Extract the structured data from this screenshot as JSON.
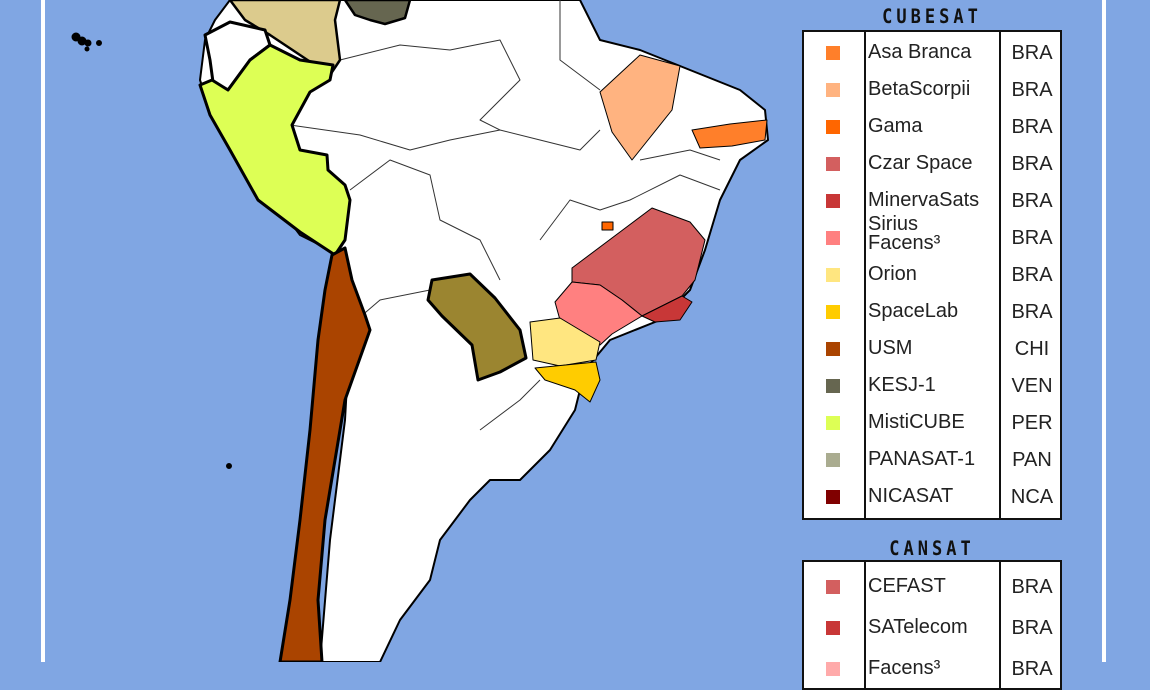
{
  "legend": {
    "cubesat": {
      "title": "CUBESAT",
      "items": [
        {
          "name": "Asa Branca",
          "country": "BRA",
          "color": "#ff7f2a"
        },
        {
          "name": "BetaScorpii",
          "country": "BRA",
          "color": "#ffb380"
        },
        {
          "name": "Gama",
          "country": "BRA",
          "color": "#ff6600"
        },
        {
          "name": "Czar Space",
          "country": "BRA",
          "color": "#d35f5f"
        },
        {
          "name": "MinervaSats",
          "country": "BRA",
          "color": "#c83737"
        },
        {
          "name": "Sirius Facens³",
          "country": "BRA",
          "color": "#ff8080"
        },
        {
          "name": "Orion",
          "country": "BRA",
          "color": "#ffe680"
        },
        {
          "name": "SpaceLab",
          "country": "BRA",
          "color": "#ffcc00"
        },
        {
          "name": "USM",
          "country": "CHI",
          "color": "#aa4400"
        },
        {
          "name": "KESJ-1",
          "country": "VEN",
          "color": "#666650"
        },
        {
          "name": "MistiCUBE",
          "country": "PER",
          "color": "#ddff55"
        },
        {
          "name": "PANASAT-1",
          "country": "PAN",
          "color": "#aaac90"
        },
        {
          "name": "NICASAT",
          "country": "NCA",
          "color": "#800000"
        }
      ]
    },
    "cansat": {
      "title": "CANSAT",
      "items": [
        {
          "name": "CEFAST",
          "country": "BRA",
          "color": "#d35f5f"
        },
        {
          "name": "SATelecom",
          "country": "BRA",
          "color": "#c83737"
        },
        {
          "name": "Facens³",
          "country": "BRA",
          "color": "#ffaaaa"
        }
      ]
    }
  },
  "map": {
    "ocean_color": "#80a6e3",
    "land_color": "#ffffff",
    "regions": [
      {
        "country": "Colombia",
        "color": "#dccb8d"
      },
      {
        "country": "Venezuela",
        "color": "#666650"
      },
      {
        "country": "Peru",
        "color": "#ddff55"
      },
      {
        "country": "Chile",
        "color": "#aa4400"
      },
      {
        "country": "Paraguay",
        "color": "#9b8530"
      }
    ]
  }
}
